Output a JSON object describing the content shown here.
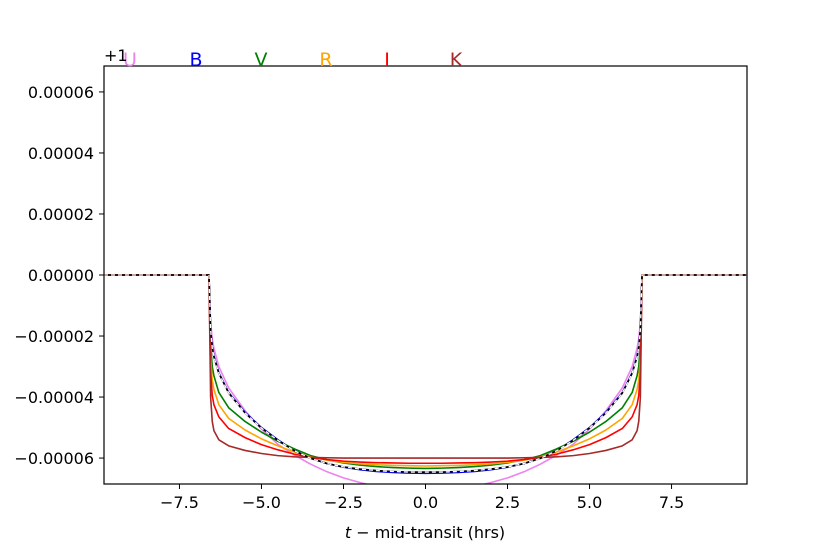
{
  "chart_data": {
    "type": "line",
    "xlabel": "t − mid-transit  (hrs)",
    "xlabel_italic": "t",
    "xlabel_rest": " − mid-transit  (hrs)",
    "ylabel": "",
    "offset_label": "+1",
    "xlim": [
      -9.8,
      9.8
    ],
    "ylim": [
      -6.85e-05,
      6.85e-05
    ],
    "x_ticks": [
      -7.5,
      -5.0,
      -2.5,
      0.0,
      2.5,
      5.0,
      7.5
    ],
    "x_tick_labels": [
      "−7.5",
      "−5.0",
      "−2.5",
      "0.0",
      "2.5",
      "5.0",
      "7.5"
    ],
    "y_ticks": [
      6e-05,
      4e-05,
      2e-05,
      0.0,
      -2e-05,
      -4e-05,
      -6e-05
    ],
    "y_tick_labels": [
      "0.00006",
      "0.00004",
      "0.00002",
      "0.00000",
      "−0.00002",
      "−0.00004",
      "−0.00006"
    ],
    "grid": false,
    "legend": "top, labels colored per band",
    "x": [
      -9.8,
      -6.6,
      -6.55,
      -6.5,
      -6.45,
      -6.3,
      -6.0,
      -5.5,
      -5.0,
      -4.5,
      -4.0,
      -3.5,
      -3.0,
      -2.5,
      -2.0,
      -1.5,
      -1.0,
      -0.5,
      0.0,
      0.5,
      1.0,
      1.5,
      2.0,
      2.5,
      3.0,
      3.5,
      4.0,
      4.5,
      5.0,
      5.5,
      6.0,
      6.3,
      6.45,
      6.5,
      6.55,
      6.6,
      9.8
    ],
    "series": [
      {
        "name": "U",
        "color": "#ee82ee",
        "values": [
          0,
          0,
          -1.55e-05,
          -2.1e-05,
          -2.4e-05,
          -3e-05,
          -3.7e-05,
          -4.45e-05,
          -5.05e-05,
          -5.55e-05,
          -5.9e-05,
          -6.2e-05,
          -6.45e-05,
          -6.65e-05,
          -6.8e-05,
          -6.93e-05,
          -7e-05,
          -7.03e-05,
          -7.04e-05,
          -7.03e-05,
          -7e-05,
          -6.93e-05,
          -6.8e-05,
          -6.65e-05,
          -6.45e-05,
          -6.2e-05,
          -5.9e-05,
          -5.55e-05,
          -5.05e-05,
          -4.45e-05,
          -3.7e-05,
          -3e-05,
          -2.4e-05,
          -2.1e-05,
          -1.55e-05,
          0,
          0
        ]
      },
      {
        "name": "B",
        "color": "#0000ff",
        "values": [
          0,
          0,
          -1.78e-05,
          -2.35e-05,
          -2.65e-05,
          -3.2e-05,
          -3.85e-05,
          -4.5e-05,
          -5e-05,
          -5.4e-05,
          -5.75e-05,
          -6e-05,
          -6.18e-05,
          -6.3e-05,
          -6.38e-05,
          -6.44e-05,
          -6.47e-05,
          -6.49e-05,
          -6.5e-05,
          -6.49e-05,
          -6.47e-05,
          -6.44e-05,
          -6.38e-05,
          -6.3e-05,
          -6.18e-05,
          -6e-05,
          -5.75e-05,
          -5.4e-05,
          -5e-05,
          -4.5e-05,
          -3.85e-05,
          -3.2e-05,
          -2.65e-05,
          -2.35e-05,
          -1.78e-05,
          0,
          0
        ]
      },
      {
        "name": "V",
        "color": "#008000",
        "values": [
          0,
          0,
          -2.3e-05,
          -3e-05,
          -3.3e-05,
          -3.85e-05,
          -4.35e-05,
          -4.8e-05,
          -5.15e-05,
          -5.45e-05,
          -5.7e-05,
          -5.92e-05,
          -6.06e-05,
          -6.16e-05,
          -6.23e-05,
          -6.28e-05,
          -6.31e-05,
          -6.33e-05,
          -6.34e-05,
          -6.33e-05,
          -6.31e-05,
          -6.28e-05,
          -6.23e-05,
          -6.16e-05,
          -6.06e-05,
          -5.92e-05,
          -5.7e-05,
          -5.45e-05,
          -5.15e-05,
          -4.8e-05,
          -4.35e-05,
          -3.85e-05,
          -3.3e-05,
          -3e-05,
          -2.3e-05,
          0,
          0
        ]
      },
      {
        "name": "R",
        "color": "#ffa500",
        "values": [
          0,
          0,
          -2.7e-05,
          -3.45e-05,
          -3.75e-05,
          -4.25e-05,
          -4.7e-05,
          -5.08e-05,
          -5.37e-05,
          -5.6e-05,
          -5.8e-05,
          -5.96e-05,
          -6.07e-05,
          -6.14e-05,
          -6.19e-05,
          -6.22e-05,
          -6.24e-05,
          -6.25e-05,
          -6.26e-05,
          -6.25e-05,
          -6.24e-05,
          -6.22e-05,
          -6.19e-05,
          -6.14e-05,
          -6.07e-05,
          -5.96e-05,
          -5.8e-05,
          -5.6e-05,
          -5.37e-05,
          -5.08e-05,
          -4.7e-05,
          -4.25e-05,
          -3.75e-05,
          -3.45e-05,
          -2.7e-05,
          0,
          0
        ]
      },
      {
        "name": "I",
        "color": "#ff0000",
        "values": [
          0,
          0,
          -3.2e-05,
          -3.95e-05,
          -4.25e-05,
          -4.65e-05,
          -5.03e-05,
          -5.33e-05,
          -5.56e-05,
          -5.73e-05,
          -5.87e-05,
          -5.98e-05,
          -6.05e-05,
          -6.1e-05,
          -6.13e-05,
          -6.15e-05,
          -6.16e-05,
          -6.17e-05,
          -6.17e-05,
          -6.17e-05,
          -6.16e-05,
          -6.15e-05,
          -6.13e-05,
          -6.1e-05,
          -6.05e-05,
          -5.98e-05,
          -5.87e-05,
          -5.73e-05,
          -5.56e-05,
          -5.33e-05,
          -5.03e-05,
          -4.65e-05,
          -4.25e-05,
          -3.95e-05,
          -3.2e-05,
          0,
          0
        ]
      },
      {
        "name": "K",
        "color": "#a52a2a",
        "values": [
          0,
          0,
          -4e-05,
          -4.8e-05,
          -5.1e-05,
          -5.4e-05,
          -5.6e-05,
          -5.75e-05,
          -5.85e-05,
          -5.92e-05,
          -5.96e-05,
          -5.98e-05,
          -5.99e-05,
          -6e-05,
          -6e-05,
          -6e-05,
          -6e-05,
          -6e-05,
          -6e-05,
          -6e-05,
          -6e-05,
          -6e-05,
          -6e-05,
          -6e-05,
          -5.99e-05,
          -5.98e-05,
          -5.96e-05,
          -5.92e-05,
          -5.85e-05,
          -5.75e-05,
          -5.6e-05,
          -5.4e-05,
          -5.1e-05,
          -4.8e-05,
          -4e-05,
          0,
          0
        ]
      },
      {
        "name": "",
        "color": "#000000",
        "values": [
          0,
          0,
          -1.8e-05,
          -2.38e-05,
          -2.68e-05,
          -3.22e-05,
          -3.87e-05,
          -4.52e-05,
          -5.02e-05,
          -5.42e-05,
          -5.76e-05,
          -6.01e-05,
          -6.18e-05,
          -6.29e-05,
          -6.36e-05,
          -6.41e-05,
          -6.44e-05,
          -6.46e-05,
          -6.46e-05,
          -6.46e-05,
          -6.44e-05,
          -6.41e-05,
          -6.36e-05,
          -6.29e-05,
          -6.18e-05,
          -6.01e-05,
          -5.76e-05,
          -5.42e-05,
          -5.02e-05,
          -4.52e-05,
          -3.87e-05,
          -3.22e-05,
          -2.68e-05,
          -2.38e-05,
          -1.8e-05,
          0,
          0
        ]
      },
      {
        "name": "",
        "color": "#ffffff",
        "dashed": true,
        "values": [
          0,
          0,
          -1.8e-05,
          -2.38e-05,
          -2.68e-05,
          -3.22e-05,
          -3.87e-05,
          -4.52e-05,
          -5.02e-05,
          -5.42e-05,
          -5.76e-05,
          -6.01e-05,
          -6.18e-05,
          -6.29e-05,
          -6.36e-05,
          -6.41e-05,
          -6.44e-05,
          -6.46e-05,
          -6.46e-05,
          -6.46e-05,
          -6.44e-05,
          -6.41e-05,
          -6.36e-05,
          -6.29e-05,
          -6.18e-05,
          -6.01e-05,
          -5.76e-05,
          -5.42e-05,
          -5.02e-05,
          -4.52e-05,
          -3.87e-05,
          -3.22e-05,
          -2.68e-05,
          -2.38e-05,
          -1.8e-05,
          0,
          0
        ]
      }
    ],
    "legend_entries": [
      {
        "label": "U",
        "color": "#ee82ee"
      },
      {
        "label": "B",
        "color": "#0000ff"
      },
      {
        "label": "V",
        "color": "#008000"
      },
      {
        "label": "R",
        "color": "#ffa500"
      },
      {
        "label": "I",
        "color": "#ff0000"
      },
      {
        "label": "K",
        "color": "#a52a2a"
      }
    ]
  }
}
